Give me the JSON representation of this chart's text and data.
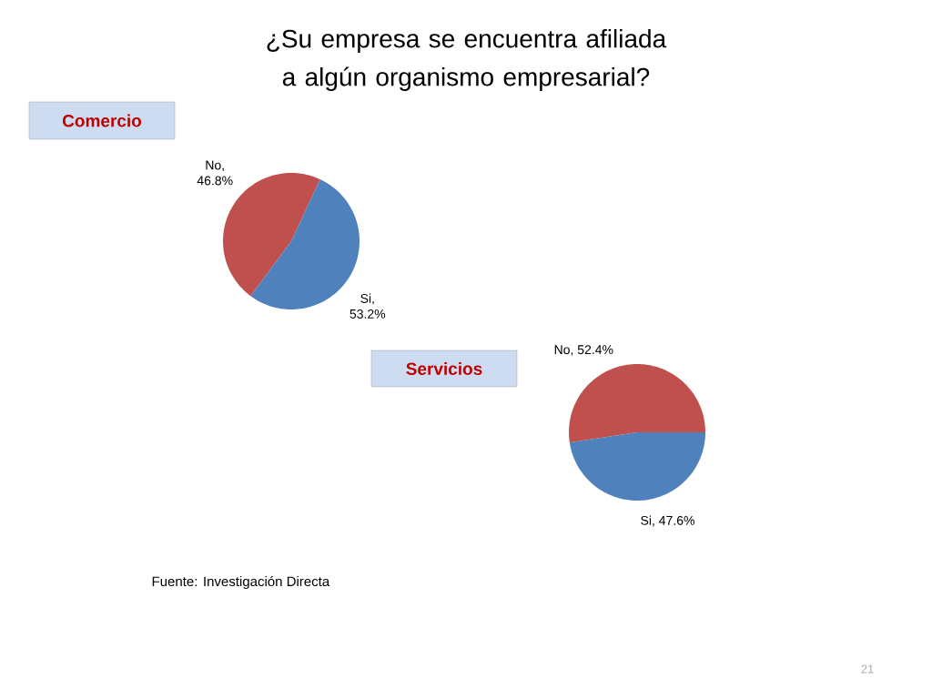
{
  "chart_data": [
    {
      "type": "pie",
      "title": "¿Su empresa se encuentra afiliada a algún organismo empresarial?",
      "subtitle": "Comercio",
      "categories": [
        "No",
        "Si"
      ],
      "values": [
        46.8,
        53.2
      ],
      "value_labels": [
        ", 46.8%",
        ", 53.2%"
      ],
      "colors": [
        "#c0504d",
        "#4f81bd"
      ]
    },
    {
      "type": "pie",
      "title": "Servicios",
      "categories": [
        "No",
        "Si"
      ],
      "values": [
        52.4,
        47.6
      ],
      "value_labels": [
        ", 52.4%",
        ", 47.6%"
      ],
      "colors": [
        "#c0504d",
        "#4f81bd"
      ],
      "annotations": [
        "Fuente: Investigación Directa",
        "21"
      ]
    }
  ]
}
